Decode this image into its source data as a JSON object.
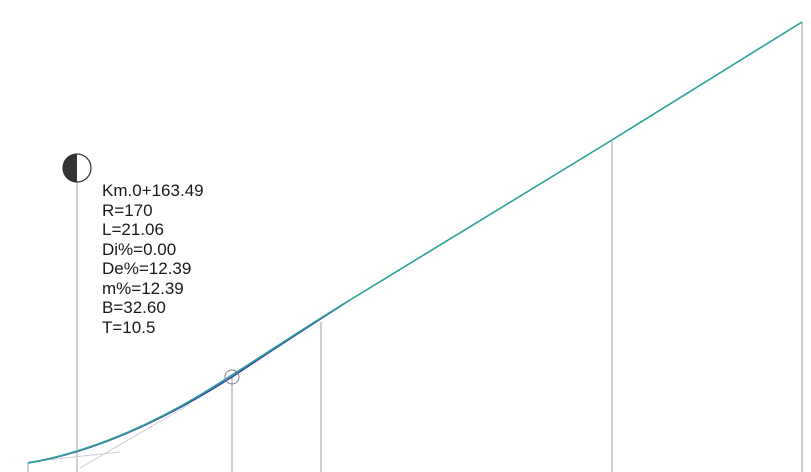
{
  "curve_annotation": {
    "km": "Km.0+163.49",
    "r": "R=170",
    "l": "L=21.06",
    "di": "Di%=0.00",
    "de": "De%=12.39",
    "m": "m%=12.39",
    "b": "B=32.60",
    "t": "T=10.5"
  },
  "colors": {
    "grade_line": "#2aa198",
    "vertical_curve": "#3b45a8",
    "tangent_extension": "#b8c0c8",
    "station_line": "#9aa0a6",
    "marker": "#333333",
    "text": "#1a1a1a"
  }
}
